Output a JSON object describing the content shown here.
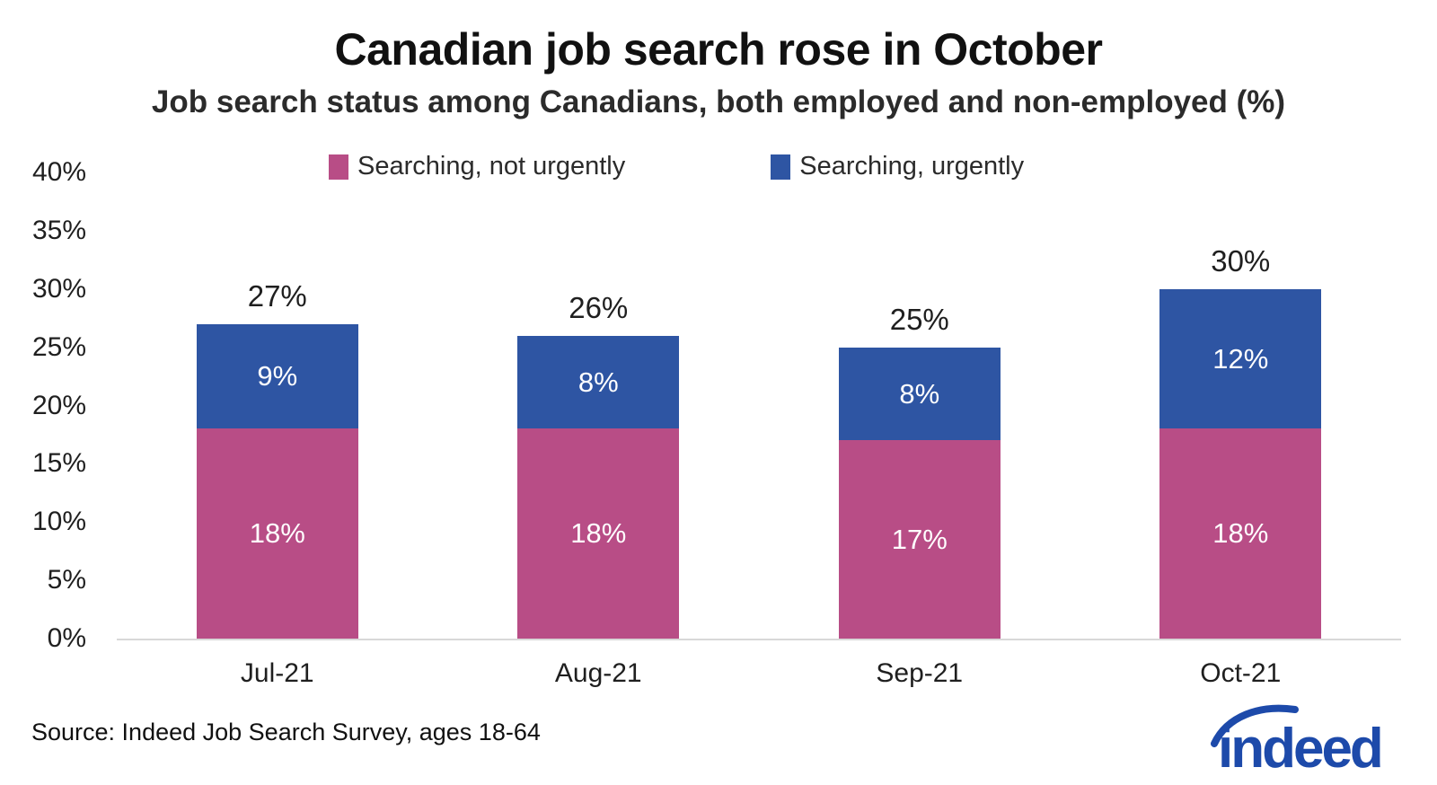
{
  "header": {
    "title": "Canadian job search rose in October",
    "subtitle": "Job search status among Canadians, both employed and non-employed (%)"
  },
  "chart_data": {
    "type": "bar",
    "stacked": true,
    "title": "Canadian job search rose in October",
    "subtitle": "Job search status among Canadians, both employed and non-employed (%)",
    "categories": [
      "Jul-21",
      "Aug-21",
      "Sep-21",
      "Oct-21"
    ],
    "series": [
      {
        "name": "Searching, not urgently",
        "color": "#b84d86",
        "values": [
          18,
          18,
          17,
          18
        ]
      },
      {
        "name": "Searching, urgently",
        "color": "#2e55a3",
        "values": [
          9,
          8,
          8,
          12
        ]
      }
    ],
    "totals": [
      27,
      26,
      25,
      30
    ],
    "total_label_suffix": "%",
    "y_ticks": [
      "40%",
      "35%",
      "30%",
      "25%",
      "20%",
      "15%",
      "10%",
      "5%",
      "0%"
    ],
    "ylim": [
      0,
      40
    ],
    "grid": false,
    "legend_position": "top"
  },
  "footer": {
    "source": "Source: Indeed Job Search Survey, ages 18-64",
    "logo_text": "indeed"
  },
  "colors": {
    "not_urgent_pink": "#b84d86",
    "urgent_blue": "#2e55a3",
    "logo_blue": "#1d4aaa",
    "baseline_gray": "#d8d8d8"
  }
}
